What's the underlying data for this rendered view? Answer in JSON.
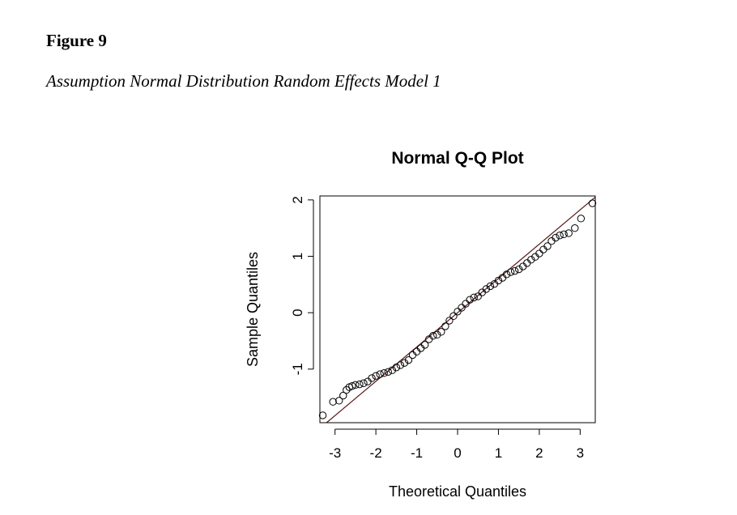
{
  "figure": {
    "label": "Figure 9",
    "caption": "Assumption Normal Distribution Random Effects Model 1"
  },
  "chart_data": {
    "type": "scatter",
    "title": "Normal Q-Q Plot",
    "xlabel": "Theoretical Quantiles",
    "ylabel": "Sample Quantiles",
    "xlim": [
      -3.37,
      3.37
    ],
    "ylim": [
      -1.95,
      2.07
    ],
    "x_ticks": [
      -3,
      -2,
      -1,
      0,
      1,
      2,
      3
    ],
    "y_ticks": [
      -1,
      0,
      1,
      2
    ],
    "grid": false,
    "point_style": "open-circle",
    "colors": {
      "points": "#000000",
      "line": "#5a1a1a",
      "axes": "#000000"
    },
    "reference_line": {
      "slope": 0.608,
      "intercept": 0.0
    },
    "points": [
      [
        -3.3,
        -1.82
      ],
      [
        -3.05,
        -1.58
      ],
      [
        -2.9,
        -1.56
      ],
      [
        -2.8,
        -1.47
      ],
      [
        -2.72,
        -1.37
      ],
      [
        -2.65,
        -1.32
      ],
      [
        -2.58,
        -1.3
      ],
      [
        -2.5,
        -1.28
      ],
      [
        -2.4,
        -1.27
      ],
      [
        -2.3,
        -1.25
      ],
      [
        -2.2,
        -1.22
      ],
      [
        -2.1,
        -1.16
      ],
      [
        -2.0,
        -1.12
      ],
      [
        -1.9,
        -1.09
      ],
      [
        -1.8,
        -1.07
      ],
      [
        -1.7,
        -1.05
      ],
      [
        -1.6,
        -1.02
      ],
      [
        -1.5,
        -0.97
      ],
      [
        -1.4,
        -0.93
      ],
      [
        -1.3,
        -0.89
      ],
      [
        -1.2,
        -0.84
      ],
      [
        -1.1,
        -0.75
      ],
      [
        -1.0,
        -0.69
      ],
      [
        -0.9,
        -0.63
      ],
      [
        -0.8,
        -0.57
      ],
      [
        -0.7,
        -0.47
      ],
      [
        -0.6,
        -0.41
      ],
      [
        -0.5,
        -0.39
      ],
      [
        -0.4,
        -0.34
      ],
      [
        -0.3,
        -0.24
      ],
      [
        -0.2,
        -0.14
      ],
      [
        -0.1,
        -0.06
      ],
      [
        0.0,
        0.02
      ],
      [
        0.1,
        0.09
      ],
      [
        0.2,
        0.16
      ],
      [
        0.3,
        0.23
      ],
      [
        0.4,
        0.27
      ],
      [
        0.5,
        0.29
      ],
      [
        0.6,
        0.36
      ],
      [
        0.7,
        0.42
      ],
      [
        0.8,
        0.47
      ],
      [
        0.9,
        0.51
      ],
      [
        1.0,
        0.57
      ],
      [
        1.1,
        0.62
      ],
      [
        1.2,
        0.68
      ],
      [
        1.3,
        0.72
      ],
      [
        1.4,
        0.74
      ],
      [
        1.5,
        0.77
      ],
      [
        1.6,
        0.82
      ],
      [
        1.7,
        0.88
      ],
      [
        1.8,
        0.94
      ],
      [
        1.9,
        0.99
      ],
      [
        2.0,
        1.05
      ],
      [
        2.1,
        1.12
      ],
      [
        2.2,
        1.18
      ],
      [
        2.3,
        1.27
      ],
      [
        2.4,
        1.33
      ],
      [
        2.5,
        1.37
      ],
      [
        2.6,
        1.39
      ],
      [
        2.72,
        1.41
      ],
      [
        2.87,
        1.5
      ],
      [
        3.02,
        1.67
      ],
      [
        3.3,
        1.94
      ]
    ]
  }
}
